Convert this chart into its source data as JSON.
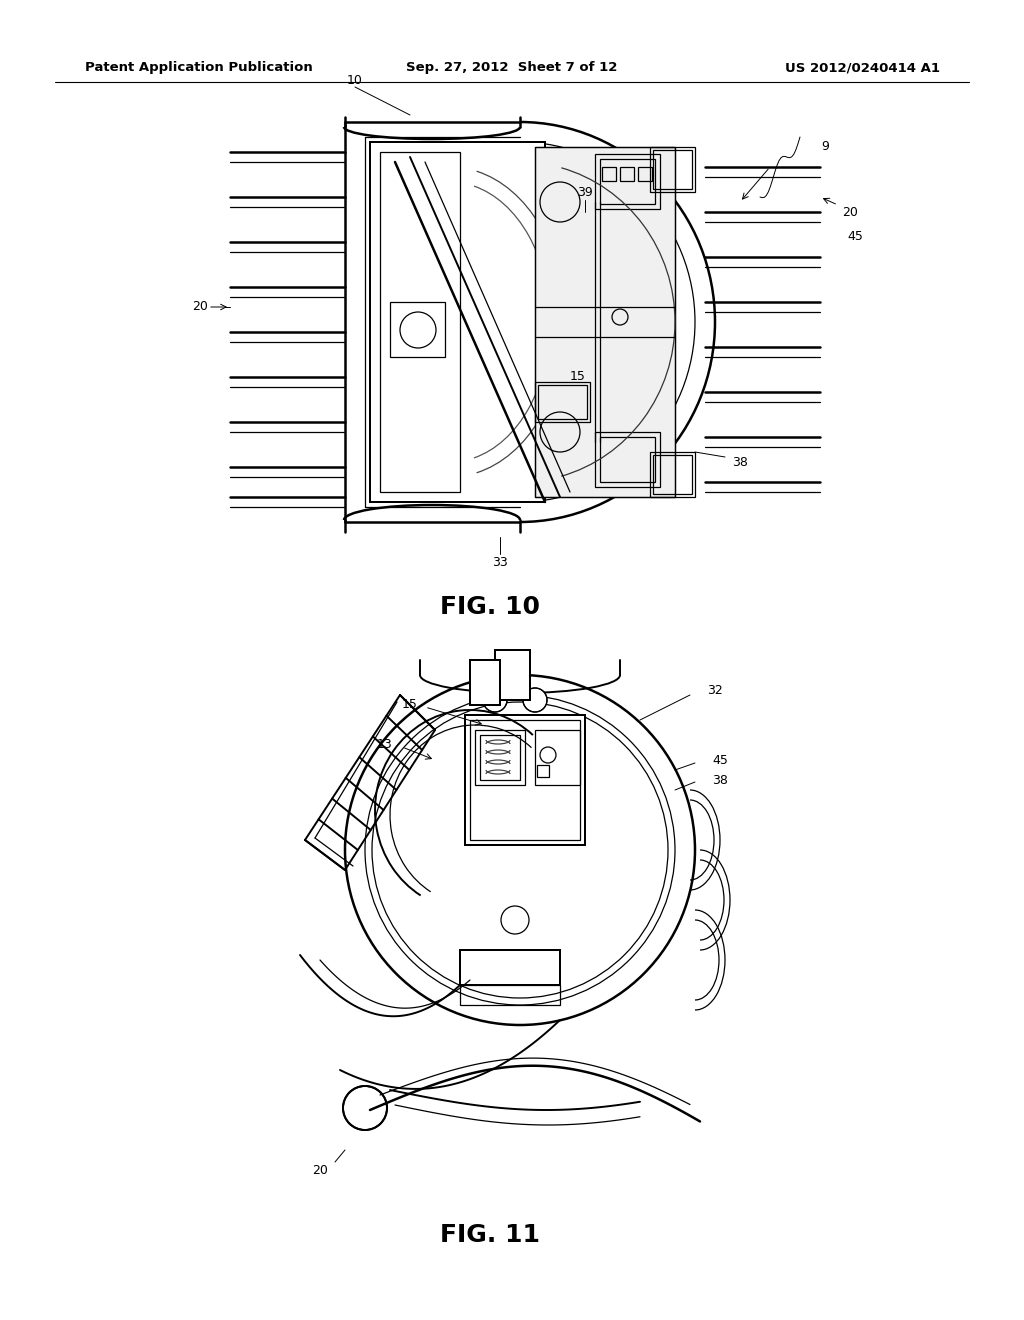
{
  "background_color": "#ffffff",
  "page_width": 10.24,
  "page_height": 13.2,
  "header": {
    "left_text": "Patent Application Publication",
    "center_text": "Sep. 27, 2012  Sheet 7 of 12",
    "right_text": "US 2012/0240414 A1",
    "fontsize": 9.5
  },
  "text_color": "#000000",
  "annotation_fontsize": 9,
  "fig10_label": "FIG. 10",
  "fig11_label": "FIG. 11",
  "fig10_label_fontsize": 18,
  "fig11_label_fontsize": 18
}
